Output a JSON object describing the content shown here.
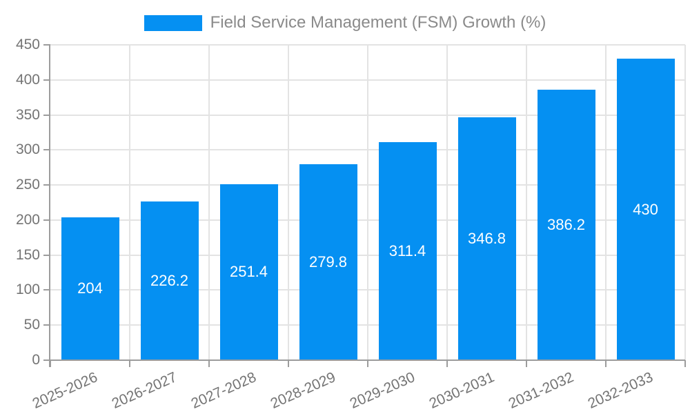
{
  "chart_data": {
    "type": "bar",
    "title": "Field Service Management (FSM) Growth (%)",
    "series_name": "Field Service Management (FSM) Growth (%)",
    "categories": [
      "2025-2026",
      "2026-2027",
      "2027-2028",
      "2028-2029",
      "2029-2030",
      "2030-2031",
      "2031-2032",
      "2032-2033"
    ],
    "values": [
      204,
      226.2,
      251.4,
      279.8,
      311.4,
      346.8,
      386.2,
      430
    ],
    "value_labels": [
      "204",
      "226.2",
      "251.4",
      "279.8",
      "311.4",
      "346.8",
      "386.2",
      "430"
    ],
    "xlabel": "",
    "ylabel": "",
    "ylim": [
      0,
      450
    ],
    "yticks": [
      0,
      50,
      100,
      150,
      200,
      250,
      300,
      350,
      400,
      450
    ],
    "grid": true,
    "legend_position": "top-center",
    "value_label_position": "inside-center"
  },
  "legend": {
    "label": "Field Service Management (FSM) Growth (%)"
  },
  "colors": {
    "bar": "#0590f2",
    "value_label": "#ffffff",
    "axis_label": "#747474",
    "legend_text": "#8a8a8a",
    "gridline": "#e3e3e3",
    "axis_line": "#9c9c9c",
    "background": "#ffffff"
  }
}
